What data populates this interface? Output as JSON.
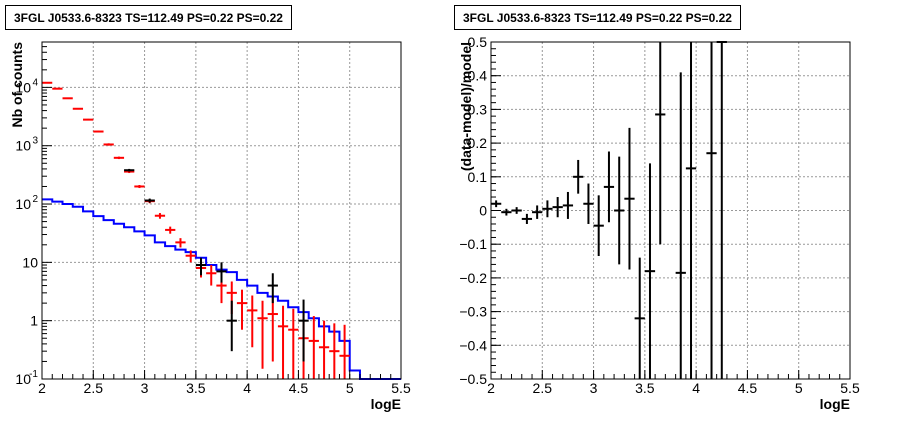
{
  "chart_data": [
    {
      "type": "line",
      "title": "3FGL J0533.6-8323 TS=112.49 PS=0.22 PS=0.22",
      "xlabel": "logE",
      "ylabel": "Nb of counts",
      "xlim": [
        2,
        5.5
      ],
      "ylim": [
        0.1,
        60000
      ],
      "log_y": true,
      "grid": true,
      "x_ticks": [
        "2",
        "2.5",
        "3",
        "3.5",
        "4",
        "4.5",
        "5",
        "5.5"
      ],
      "y_ticks": [
        {
          "base": "10",
          "exp": "-1",
          "value": 0.1
        },
        {
          "base": "1",
          "exp": "",
          "value": 1
        },
        {
          "base": "10",
          "exp": "",
          "value": 10
        },
        {
          "base": "10",
          "exp": "2",
          "value": 100
        },
        {
          "base": "10",
          "exp": "3",
          "value": 1000
        },
        {
          "base": "10",
          "exp": "4",
          "value": 10000
        }
      ],
      "bin_edges": [
        2.0,
        2.1,
        2.2,
        2.3,
        2.4,
        2.5,
        2.6,
        2.7,
        2.8,
        2.9,
        3.0,
        3.1,
        3.2,
        3.3,
        3.4,
        3.5,
        3.6,
        3.7,
        3.8,
        3.9,
        4.0,
        4.1,
        4.2,
        4.3,
        4.4,
        4.5,
        4.6,
        4.7,
        4.8,
        4.9,
        5.0,
        5.1,
        5.2,
        5.3,
        5.4,
        5.5
      ],
      "series": [
        {
          "kind": "model-step",
          "color": "#0000ff",
          "values": [
            120,
            110,
            100,
            90,
            75,
            62,
            53,
            46,
            40,
            34,
            29,
            22,
            19,
            16.5,
            15,
            12,
            9,
            7.5,
            6.8,
            5,
            4,
            3,
            2.6,
            2.2,
            1.7,
            1.4,
            1.1,
            0.8,
            0.65,
            0.45,
            0.14,
            0.1,
            0.1,
            0.1,
            0.1
          ]
        },
        {
          "kind": "data-points",
          "color": "#ff0000",
          "points": [
            {
              "x": 2.05,
              "y": 12000,
              "lo": 11800,
              "hi": 12200
            },
            {
              "x": 2.15,
              "y": 9500,
              "lo": 9300,
              "hi": 9700
            },
            {
              "x": 2.25,
              "y": 6500,
              "lo": 6350,
              "hi": 6650
            },
            {
              "x": 2.35,
              "y": 4300,
              "lo": 4200,
              "hi": 4400
            },
            {
              "x": 2.45,
              "y": 2800,
              "lo": 2720,
              "hi": 2880
            },
            {
              "x": 2.55,
              "y": 1750,
              "lo": 1690,
              "hi": 1810
            },
            {
              "x": 2.65,
              "y": 1050,
              "lo": 1000,
              "hi": 1100
            },
            {
              "x": 2.75,
              "y": 620,
              "lo": 590,
              "hi": 650
            },
            {
              "x": 2.85,
              "y": 360,
              "lo": 340,
              "hi": 380
            },
            {
              "x": 2.95,
              "y": 200,
              "lo": 188,
              "hi": 212
            },
            {
              "x": 3.05,
              "y": 112,
              "lo": 103,
              "hi": 121
            },
            {
              "x": 3.15,
              "y": 63,
              "lo": 56,
              "hi": 70
            },
            {
              "x": 3.25,
              "y": 36,
              "lo": 31,
              "hi": 41
            },
            {
              "x": 3.35,
              "y": 22,
              "lo": 18,
              "hi": 26
            },
            {
              "x": 3.45,
              "y": 13,
              "lo": 10,
              "hi": 16
            },
            {
              "x": 3.55,
              "y": 8,
              "lo": 5.5,
              "hi": 10.5
            },
            {
              "x": 3.65,
              "y": 6.5,
              "lo": 4,
              "hi": 9
            },
            {
              "x": 3.75,
              "y": 4,
              "lo": 2,
              "hi": 6
            },
            {
              "x": 3.85,
              "y": 3,
              "lo": 1.3,
              "hi": 4.7
            },
            {
              "x": 3.95,
              "y": 2,
              "lo": 0.7,
              "hi": 3.4
            },
            {
              "x": 4.05,
              "y": 1.5,
              "lo": 0.35,
              "hi": 2.7
            },
            {
              "x": 4.15,
              "y": 1.1,
              "lo": 0.15,
              "hi": 2.2
            },
            {
              "x": 4.25,
              "y": 1.3,
              "lo": 0.2,
              "hi": 2.5
            },
            {
              "x": 4.35,
              "y": 0.8,
              "lo": 0.1,
              "hi": 1.8
            },
            {
              "x": 4.45,
              "y": 0.7,
              "lo": 0.1,
              "hi": 1.6
            },
            {
              "x": 4.55,
              "y": 0.5,
              "lo": 0.1,
              "hi": 1.3
            },
            {
              "x": 4.65,
              "y": 0.45,
              "lo": 0.1,
              "hi": 1.2
            },
            {
              "x": 4.75,
              "y": 0.35,
              "lo": 0.1,
              "hi": 1.0
            },
            {
              "x": 4.85,
              "y": 0.3,
              "lo": 0.1,
              "hi": 0.9
            },
            {
              "x": 4.95,
              "y": 0.25,
              "lo": 0.1,
              "hi": 0.85
            }
          ]
        },
        {
          "kind": "data-points",
          "color": "#000000",
          "points": [
            {
              "x": 2.85,
              "y": 380,
              "lo": 360,
              "hi": 400
            },
            {
              "x": 3.05,
              "y": 115,
              "lo": 106,
              "hi": 124
            },
            {
              "x": 3.55,
              "y": 9,
              "lo": 6,
              "hi": 12
            },
            {
              "x": 3.75,
              "y": 7,
              "lo": 4.5,
              "hi": 10
            },
            {
              "x": 3.85,
              "y": 1,
              "lo": 0.3,
              "hi": 2.2
            },
            {
              "x": 4.25,
              "y": 4,
              "lo": 2,
              "hi": 6.5
            },
            {
              "x": 4.55,
              "y": 1,
              "lo": 0.2,
              "hi": 2.3
            }
          ]
        }
      ]
    },
    {
      "type": "scatter",
      "title": "3FGL J0533.6-8323 TS=112.49 PS=0.22 PS=0.22",
      "xlabel": "logE",
      "ylabel": "(data-model)/model",
      "xlim": [
        2,
        5.5
      ],
      "ylim": [
        -0.5,
        0.5
      ],
      "grid": true,
      "x_ticks": [
        "2",
        "2.5",
        "3",
        "3.5",
        "4",
        "4.5",
        "5",
        "5.5"
      ],
      "y_ticks": [
        "-0.5",
        "-0.4",
        "-0.3",
        "-0.2",
        "-0.1",
        "0",
        "0.1",
        "0.2",
        "0.3",
        "0.4",
        "0.5"
      ],
      "points": [
        {
          "x": 2.05,
          "y": 0.02,
          "lo": 0.01,
          "hi": 0.03
        },
        {
          "x": 2.15,
          "y": -0.005,
          "lo": -0.015,
          "hi": 0.005
        },
        {
          "x": 2.25,
          "y": 0.0,
          "lo": -0.01,
          "hi": 0.01
        },
        {
          "x": 2.35,
          "y": -0.025,
          "lo": -0.04,
          "hi": -0.01
        },
        {
          "x": 2.45,
          "y": -0.005,
          "lo": -0.025,
          "hi": 0.015
        },
        {
          "x": 2.55,
          "y": 0.005,
          "lo": -0.02,
          "hi": 0.03
        },
        {
          "x": 2.65,
          "y": 0.01,
          "lo": -0.02,
          "hi": 0.04
        },
        {
          "x": 2.75,
          "y": 0.015,
          "lo": -0.025,
          "hi": 0.055
        },
        {
          "x": 2.85,
          "y": 0.1,
          "lo": 0.05,
          "hi": 0.15
        },
        {
          "x": 2.95,
          "y": 0.02,
          "lo": -0.04,
          "hi": 0.08
        },
        {
          "x": 3.05,
          "y": -0.045,
          "lo": -0.135,
          "hi": 0.045
        },
        {
          "x": 3.15,
          "y": 0.07,
          "lo": -0.035,
          "hi": 0.175
        },
        {
          "x": 3.25,
          "y": 0.0,
          "lo": -0.16,
          "hi": 0.16
        },
        {
          "x": 3.35,
          "y": 0.035,
          "lo": -0.175,
          "hi": 0.245
        },
        {
          "x": 3.45,
          "y": -0.32,
          "lo": -0.5,
          "hi": -0.14
        },
        {
          "x": 3.55,
          "y": -0.18,
          "lo": -0.5,
          "hi": 0.14
        },
        {
          "x": 3.65,
          "y": 0.285,
          "lo": -0.1,
          "hi": 0.5
        },
        {
          "x": 3.85,
          "y": -0.185,
          "lo": -0.5,
          "hi": 0.41
        },
        {
          "x": 3.95,
          "y": 0.125,
          "lo": -0.5,
          "hi": 0.5
        },
        {
          "x": 4.15,
          "y": 0.17,
          "lo": -0.5,
          "hi": 0.5
        },
        {
          "x": 4.25,
          "y": 0.5,
          "lo": -0.5,
          "hi": 0.5
        }
      ]
    }
  ]
}
